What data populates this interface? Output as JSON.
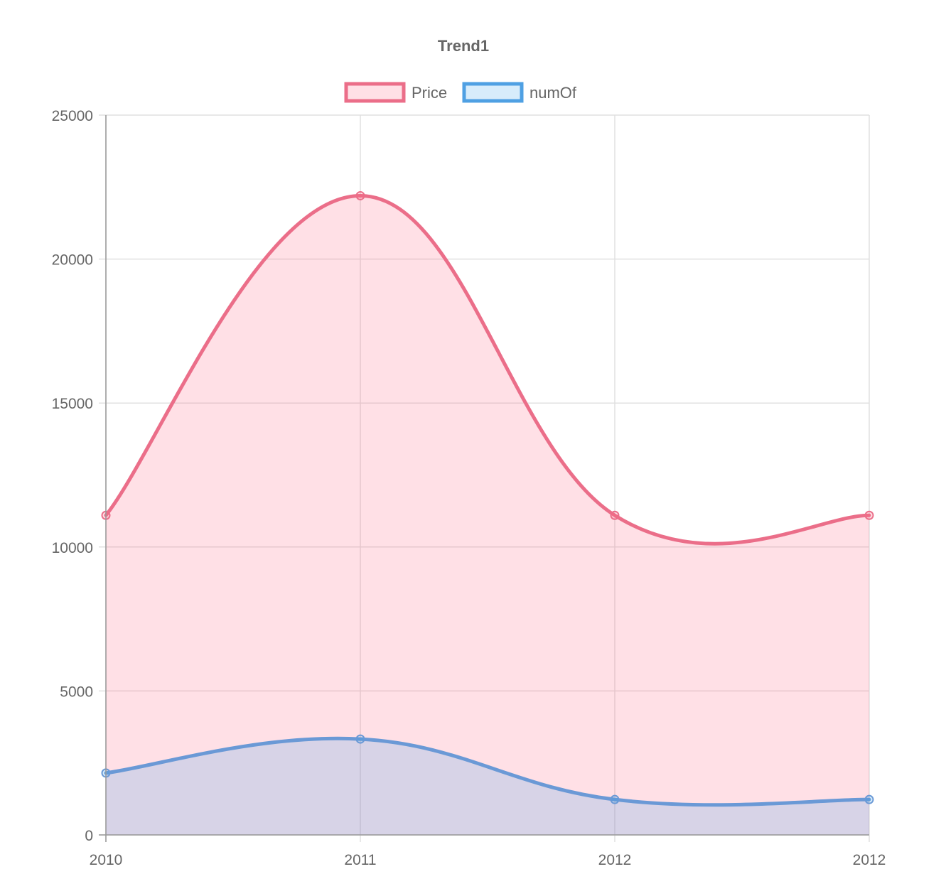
{
  "chart_data": {
    "type": "area",
    "title": "Trend1",
    "categories": [
      "2010",
      "2011",
      "2012",
      "2012"
    ],
    "ylim": [
      0,
      25000
    ],
    "yticks": [
      0,
      5000,
      10000,
      15000,
      20000,
      25000
    ],
    "grid": true,
    "legend_position": "top",
    "series": [
      {
        "name": "Price",
        "values": [
          11100,
          22200,
          11100,
          11100
        ],
        "line_color": "#eb6e89",
        "fill_color": "rgba(255,99,132,0.2)"
      },
      {
        "name": "numOf",
        "values": [
          2150,
          3330,
          1230,
          1230
        ],
        "line_color": "#6a99d6",
        "fill_color": "rgba(54,162,235,0.2)",
        "legend_border": "#4fa0e3"
      }
    ]
  }
}
